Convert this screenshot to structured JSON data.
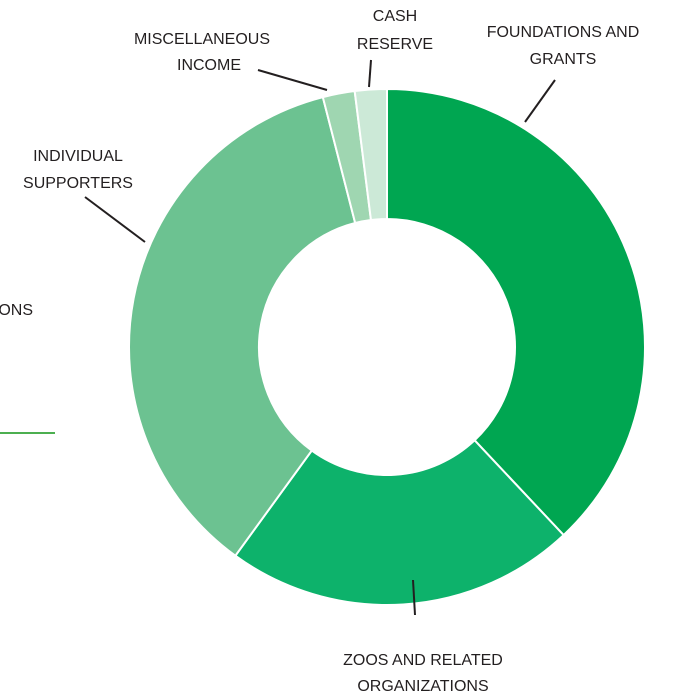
{
  "chart_data": {
    "type": "donut",
    "categories": [
      [
        "FOUNDATIONS AND",
        "GRANTS"
      ],
      [
        "ZOOS AND RELATED",
        "ORGANIZATIONS"
      ],
      [
        "INDIVIDUAL",
        "SUPPORTERS"
      ],
      [
        "MISCELLANEOUS",
        "INCOME"
      ],
      [
        "CASH",
        "RESERVE"
      ]
    ],
    "values": [
      38,
      22,
      36,
      2,
      2
    ],
    "colors": [
      "#00a651",
      "#0db26b",
      "#6cc291",
      "#9fd6b1",
      "#cce9d7"
    ],
    "fragment_label": "ONS"
  }
}
